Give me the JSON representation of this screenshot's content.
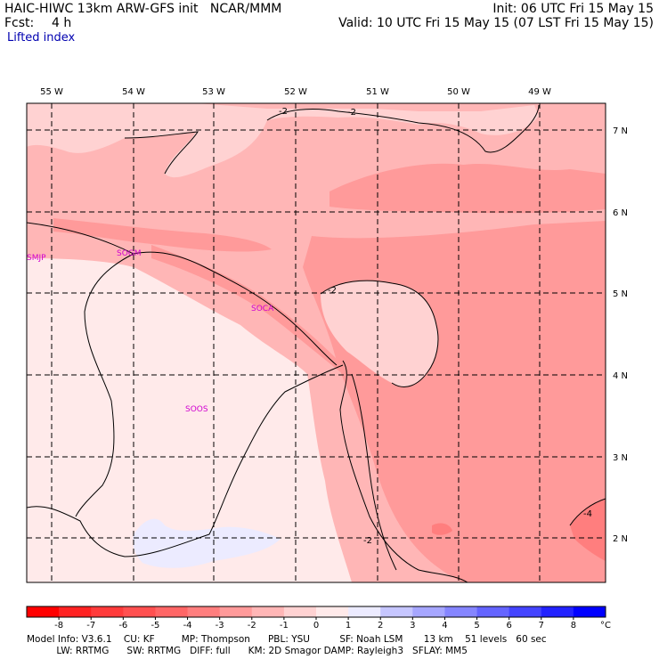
{
  "header": {
    "title": "HAIC-HIWC 13km ARW-GFS init   NCAR/MMM",
    "forecast_label": "Fcst:",
    "forecast_hours": "4 h",
    "init": "Init: 06 UTC Fri 15 May 15",
    "valid": "Valid: 10 UTC Fri 15 May 15 (07 LST Fri 15 May 15)",
    "field": "Lifted index"
  },
  "map": {
    "lon_labels": [
      "55 W",
      "54 W",
      "53 W",
      "52 W",
      "51 W",
      "50 W",
      "49 W"
    ],
    "lat_labels": [
      "7 N",
      "6 N",
      "5 N",
      "4 N",
      "3 N",
      "2 N"
    ],
    "stations": [
      "SMJP",
      "SOGM",
      "SOCA",
      "SOOS"
    ],
    "contour_labels": [
      "-2",
      "-2",
      "-2",
      "-2",
      "-4"
    ]
  },
  "colorbar": {
    "ticks": [
      "-8",
      "-7",
      "-6",
      "-5",
      "-4",
      "-3",
      "-2",
      "-1",
      "0",
      "1",
      "2",
      "3",
      "4",
      "5",
      "6",
      "7",
      "8"
    ],
    "unit": "°C",
    "colors": [
      "#ff0000",
      "#ff2222",
      "#ff3b3b",
      "#ff5050",
      "#ff6666",
      "#ff7e7e",
      "#ff9a9a",
      "#ffb6b6",
      "#ffd2d2",
      "#ffeaea",
      "#ecebff",
      "#c6c6ff",
      "#a6a6ff",
      "#8585ff",
      "#6464ff",
      "#4444ff",
      "#2222ff",
      "#0000ff"
    ]
  },
  "footer": {
    "line1": "Model Info: V3.6.1    CU: KF         MP: Thompson      PBL: YSU          SF: Noah LSM       13 km    51 levels   60 sec",
    "line2": "          LW: RRTMG      SW: RRTMG   DIFF: full      KM: 2D Smagor DAMP: Rayleigh3   SFLAY: MM5"
  }
}
